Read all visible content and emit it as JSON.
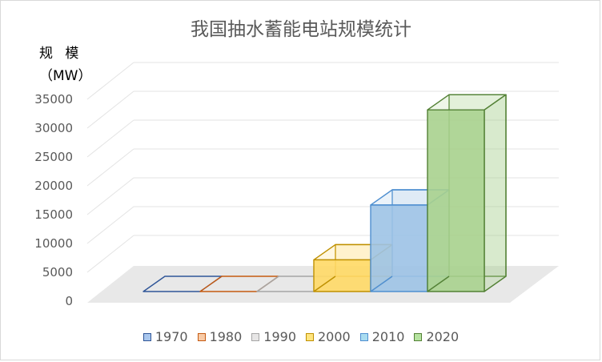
{
  "chart_data": {
    "type": "bar",
    "title": "我国抽水蓄能电站规模统计",
    "ylabel_line1": "规 模",
    "ylabel_line2": "（MW）",
    "xlabel": "",
    "categories": [
      "1970",
      "1980",
      "1990",
      "2000",
      "2010",
      "2020"
    ],
    "values": [
      0,
      0,
      0,
      5500,
      15000,
      31500
    ],
    "ylim": [
      0,
      35000
    ],
    "yticks": [
      "0",
      "5000",
      "10000",
      "15000",
      "20000",
      "25000",
      "30000",
      "35000"
    ],
    "grid": true,
    "legend_position": "bottom",
    "style": "3d-column",
    "colors": [
      {
        "fill": "#9dc3e6",
        "stroke": "#2f5597",
        "swatch": "#a9c7ee"
      },
      {
        "fill": "#f4b183",
        "stroke": "#c55a11",
        "swatch": "#f8cba7"
      },
      {
        "fill": "#e7e6e6",
        "stroke": "#a6a6a6",
        "swatch": "#e7e6e6"
      },
      {
        "fill": "#ffd966",
        "stroke": "#bf9000",
        "swatch": "#ffe57f"
      },
      {
        "fill": "#9dc3e6",
        "stroke": "#4f8fd0",
        "swatch": "#a9dcf0"
      },
      {
        "fill": "#a9d18e",
        "stroke": "#538135",
        "swatch": "#b6e3a0"
      }
    ]
  }
}
